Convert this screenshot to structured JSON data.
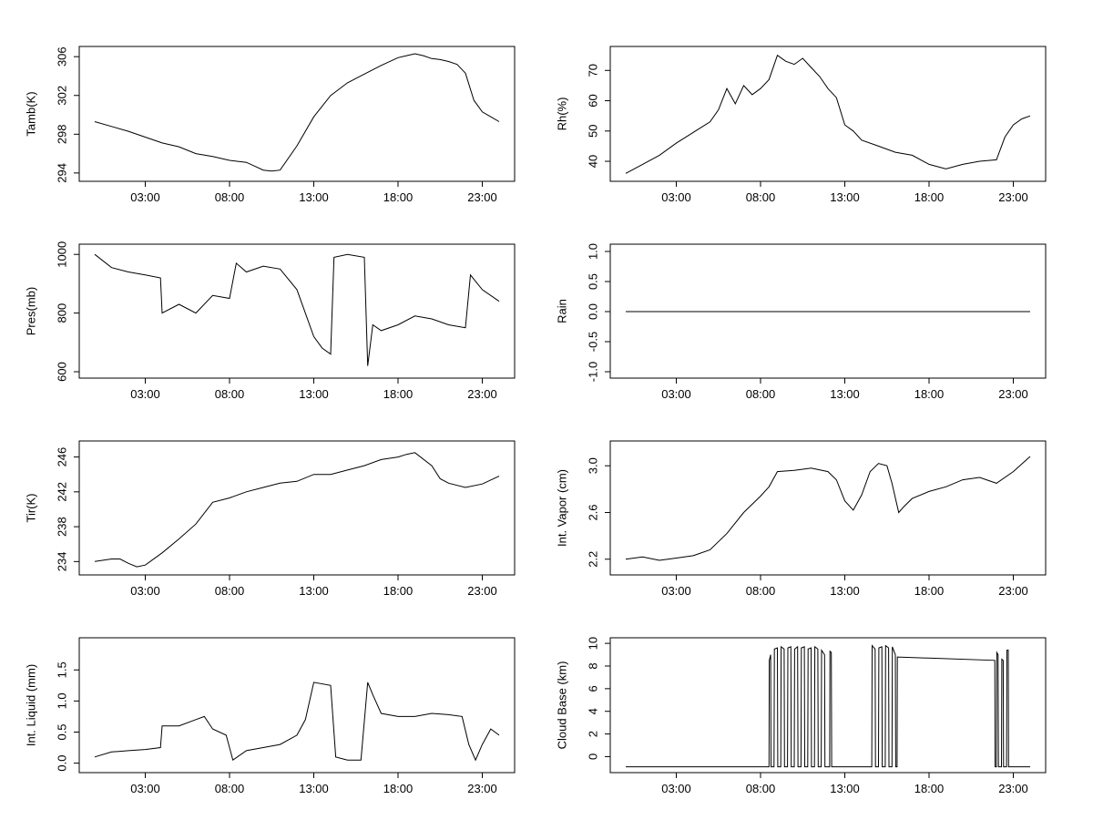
{
  "chart_data": [
    {
      "type": "line",
      "ylabel": "Tamb(K)",
      "xticks": [
        "03:00",
        "08:00",
        "13:00",
        "18:00",
        "23:00"
      ],
      "yticks": [
        "294",
        "298",
        "302",
        "306"
      ],
      "ylim": [
        293.8,
        306.3
      ],
      "color": "#000000",
      "series": [
        {
          "x": [
            0,
            1,
            2,
            3,
            4,
            5,
            6,
            7,
            8,
            9,
            9.5,
            10,
            10.5,
            11,
            12,
            13,
            14,
            15,
            16,
            17,
            18,
            18.5,
            19,
            19.5,
            20,
            20.5,
            21,
            21.5,
            22,
            22.5,
            23,
            23.5,
            24
          ],
          "y": [
            299.3,
            298.8,
            298.3,
            297.7,
            297.1,
            296.7,
            296.0,
            295.7,
            295.3,
            295.1,
            294.7,
            294.3,
            294.2,
            294.3,
            296.8,
            299.8,
            302.0,
            303.3,
            304.2,
            305.1,
            305.9,
            306.1,
            306.3,
            306.1,
            305.8,
            305.7,
            305.5,
            305.2,
            304.3,
            301.5,
            300.3,
            299.8,
            299.3
          ]
        }
      ]
    },
    {
      "type": "line",
      "ylabel": "Rh(%)",
      "xticks": [
        "03:00",
        "08:00",
        "13:00",
        "18:00",
        "23:00"
      ],
      "yticks": [
        "40",
        "50",
        "60",
        "70"
      ],
      "ylim": [
        35.5,
        75.5
      ],
      "color": "#000000",
      "series": [
        {
          "x": [
            0,
            1,
            2,
            3,
            4,
            5,
            5.5,
            6,
            6.5,
            7,
            7.5,
            8,
            8.5,
            9,
            9.5,
            10,
            10.5,
            11,
            11.5,
            12,
            12.5,
            13,
            13.5,
            14,
            15,
            16,
            17,
            18,
            19,
            20,
            21,
            22,
            22.5,
            23,
            23.5,
            24
          ],
          "y": [
            36,
            39,
            42,
            46,
            49.5,
            53,
            57,
            64,
            59,
            65,
            62,
            64,
            67,
            75,
            73,
            72,
            74,
            71,
            68,
            64,
            61,
            52,
            50,
            47,
            45,
            43,
            42,
            39,
            37.5,
            39,
            40,
            40.5,
            48,
            52,
            54,
            55
          ]
        }
      ]
    },
    {
      "type": "line",
      "ylabel": "Pres(mb)",
      "xticks": [
        "03:00",
        "08:00",
        "13:00",
        "18:00",
        "23:00"
      ],
      "yticks": [
        "600",
        "800",
        "1000"
      ],
      "ylim": [
        600,
        1010
      ],
      "color": "#000000",
      "series": [
        {
          "x": [
            0,
            1,
            2,
            3,
            3.9,
            4.0,
            5,
            6,
            7,
            8,
            8.4,
            9,
            10,
            11,
            12,
            13,
            13.5,
            14,
            14.2,
            15,
            16,
            16.2,
            16.5,
            17,
            18,
            19,
            20,
            21,
            22,
            22.3,
            23,
            24
          ],
          "y": [
            1000,
            955,
            940,
            930,
            920,
            800,
            830,
            800,
            860,
            850,
            970,
            940,
            960,
            950,
            880,
            720,
            680,
            660,
            990,
            1000,
            990,
            620,
            760,
            740,
            760,
            790,
            780,
            760,
            750,
            930,
            880,
            840
          ]
        }
      ]
    },
    {
      "type": "line",
      "ylabel": "Rain",
      "xticks": [
        "03:00",
        "08:00",
        "13:00",
        "18:00",
        "23:00"
      ],
      "yticks": [
        "-1.0",
        "-0.5",
        "0.0",
        "0.5",
        "1.0"
      ],
      "ylim": [
        -1.0,
        1.0
      ],
      "color": "#000000",
      "series": [
        {
          "x": [
            0,
            24
          ],
          "y": [
            0,
            0
          ]
        }
      ]
    },
    {
      "type": "line",
      "ylabel": "Tir(K)",
      "xticks": [
        "03:00",
        "08:00",
        "13:00",
        "18:00",
        "23:00"
      ],
      "yticks": [
        "234",
        "238",
        "242",
        "246"
      ],
      "ylim": [
        233.2,
        247.0
      ],
      "color": "#000000",
      "series": [
        {
          "x": [
            0,
            1,
            1.5,
            2,
            2.5,
            3,
            4,
            5,
            6,
            7,
            8,
            9,
            10,
            11,
            12,
            13,
            14,
            15,
            16,
            17,
            18,
            18.5,
            19,
            20,
            20.5,
            21,
            22,
            23,
            24
          ],
          "y": [
            234,
            234.3,
            234.3,
            233.8,
            233.4,
            233.6,
            235,
            236.6,
            238.3,
            240.8,
            241.3,
            242,
            242.5,
            243,
            243.2,
            244,
            244,
            244.5,
            245,
            245.7,
            246,
            246.3,
            246.5,
            245,
            243.5,
            243,
            242.5,
            242.9,
            243.8
          ]
        }
      ]
    },
    {
      "type": "line",
      "ylabel": "Int. Vapor (cm)",
      "xticks": [
        "03:00",
        "08:00",
        "13:00",
        "18:00",
        "23:00"
      ],
      "yticks": [
        "2.2",
        "2.6",
        "3.0"
      ],
      "ylim": [
        2.12,
        3.15
      ],
      "color": "#000000",
      "series": [
        {
          "x": [
            0,
            1,
            2,
            3,
            4,
            5,
            6,
            7,
            8,
            8.5,
            9,
            10,
            11,
            12,
            12.5,
            13,
            13.5,
            14,
            14.5,
            15,
            15.5,
            15.8,
            16.2,
            16.5,
            17,
            18,
            19,
            20,
            21,
            22,
            23,
            24
          ],
          "y": [
            2.2,
            2.22,
            2.19,
            2.21,
            2.23,
            2.28,
            2.42,
            2.6,
            2.74,
            2.82,
            2.95,
            2.96,
            2.98,
            2.95,
            2.88,
            2.7,
            2.62,
            2.75,
            2.95,
            3.02,
            3.0,
            2.85,
            2.6,
            2.65,
            2.72,
            2.78,
            2.82,
            2.88,
            2.9,
            2.85,
            2.95,
            3.08
          ]
        }
      ]
    },
    {
      "type": "line",
      "ylabel": "Int. Liquid (mm)",
      "xticks": [
        "03:00",
        "08:00",
        "13:00",
        "18:00",
        "23:00"
      ],
      "yticks": [
        "0.0",
        "0.5",
        "1.0",
        "1.5"
      ],
      "ylim": [
        -0.05,
        1.9
      ],
      "color": "#000000",
      "series": [
        {
          "x": [
            0,
            1,
            2,
            3,
            3.9,
            4.0,
            5,
            6,
            6.5,
            7,
            7.8,
            8.2,
            9,
            10,
            11,
            12,
            12.5,
            13,
            14,
            14.3,
            15,
            15.8,
            16.2,
            16.5,
            17,
            18,
            19,
            20,
            21,
            21.8,
            22.2,
            22.6,
            23,
            23.5,
            24
          ],
          "y": [
            0.1,
            0.18,
            0.2,
            0.22,
            0.25,
            0.6,
            0.6,
            0.7,
            0.75,
            0.55,
            0.45,
            0.05,
            0.2,
            0.25,
            0.3,
            0.45,
            0.7,
            1.3,
            1.25,
            0.1,
            0.05,
            0.05,
            1.3,
            1.1,
            0.8,
            0.75,
            0.75,
            0.8,
            0.78,
            0.75,
            0.3,
            0.05,
            0.3,
            0.55,
            0.45
          ]
        }
      ]
    },
    {
      "type": "line",
      "ylabel": "Cloud Base (km)",
      "xticks": [
        "03:00",
        "08:00",
        "13:00",
        "18:00",
        "23:00"
      ],
      "yticks": [
        "0",
        "2",
        "4",
        "6",
        "8",
        "10"
      ],
      "ylim": [
        -0.85,
        9.85
      ],
      "color": "#000000",
      "series": [
        {
          "x": [
            0,
            8.5,
            8.52,
            8.6,
            8.62,
            8.8,
            8.82,
            9.0,
            9.02,
            9.2,
            9.22,
            9.4,
            9.42,
            9.6,
            9.62,
            9.8,
            9.82,
            10.0,
            10.02,
            10.2,
            10.22,
            10.4,
            10.42,
            10.6,
            10.62,
            10.8,
            10.82,
            11.0,
            11.02,
            11.2,
            11.22,
            11.4,
            11.42,
            11.6,
            11.62,
            11.8,
            11.82,
            12.1,
            12.12,
            12.2,
            12.22,
            14.6,
            14.62,
            14.8,
            14.82,
            15.0,
            15.02,
            15.2,
            15.22,
            15.4,
            15.42,
            15.6,
            15.62,
            15.8,
            15.82,
            16.0,
            16.02,
            16.1,
            16.12,
            21.9,
            21.92,
            22.0,
            22.02,
            22.1,
            22.12,
            22.3,
            22.32,
            22.4,
            22.42,
            22.6,
            22.62,
            22.7,
            22.72,
            24
          ],
          "y": [
            -0.9,
            -0.9,
            8.5,
            9.0,
            -0.9,
            -0.9,
            9.5,
            9.6,
            -0.9,
            -0.9,
            9.7,
            9.5,
            -0.9,
            -0.9,
            9.6,
            9.7,
            -0.9,
            -0.9,
            9.5,
            9.7,
            -0.9,
            -0.9,
            9.6,
            9.7,
            -0.9,
            -0.9,
            9.5,
            9.6,
            -0.9,
            -0.9,
            9.7,
            9.5,
            -0.9,
            -0.9,
            9.4,
            9.0,
            -0.9,
            -0.9,
            9.3,
            9.2,
            -0.9,
            -0.9,
            9.8,
            9.5,
            -0.9,
            -0.9,
            9.6,
            9.7,
            -0.9,
            -0.9,
            9.8,
            9.6,
            -0.9,
            -0.9,
            9.7,
            9.0,
            -0.9,
            -0.9,
            8.8,
            8.5,
            -0.9,
            -0.9,
            9.2,
            9.0,
            -0.9,
            -0.9,
            8.6,
            8.5,
            -0.9,
            -0.9,
            9.4,
            9.4,
            -0.9,
            -0.9
          ]
        }
      ]
    }
  ]
}
